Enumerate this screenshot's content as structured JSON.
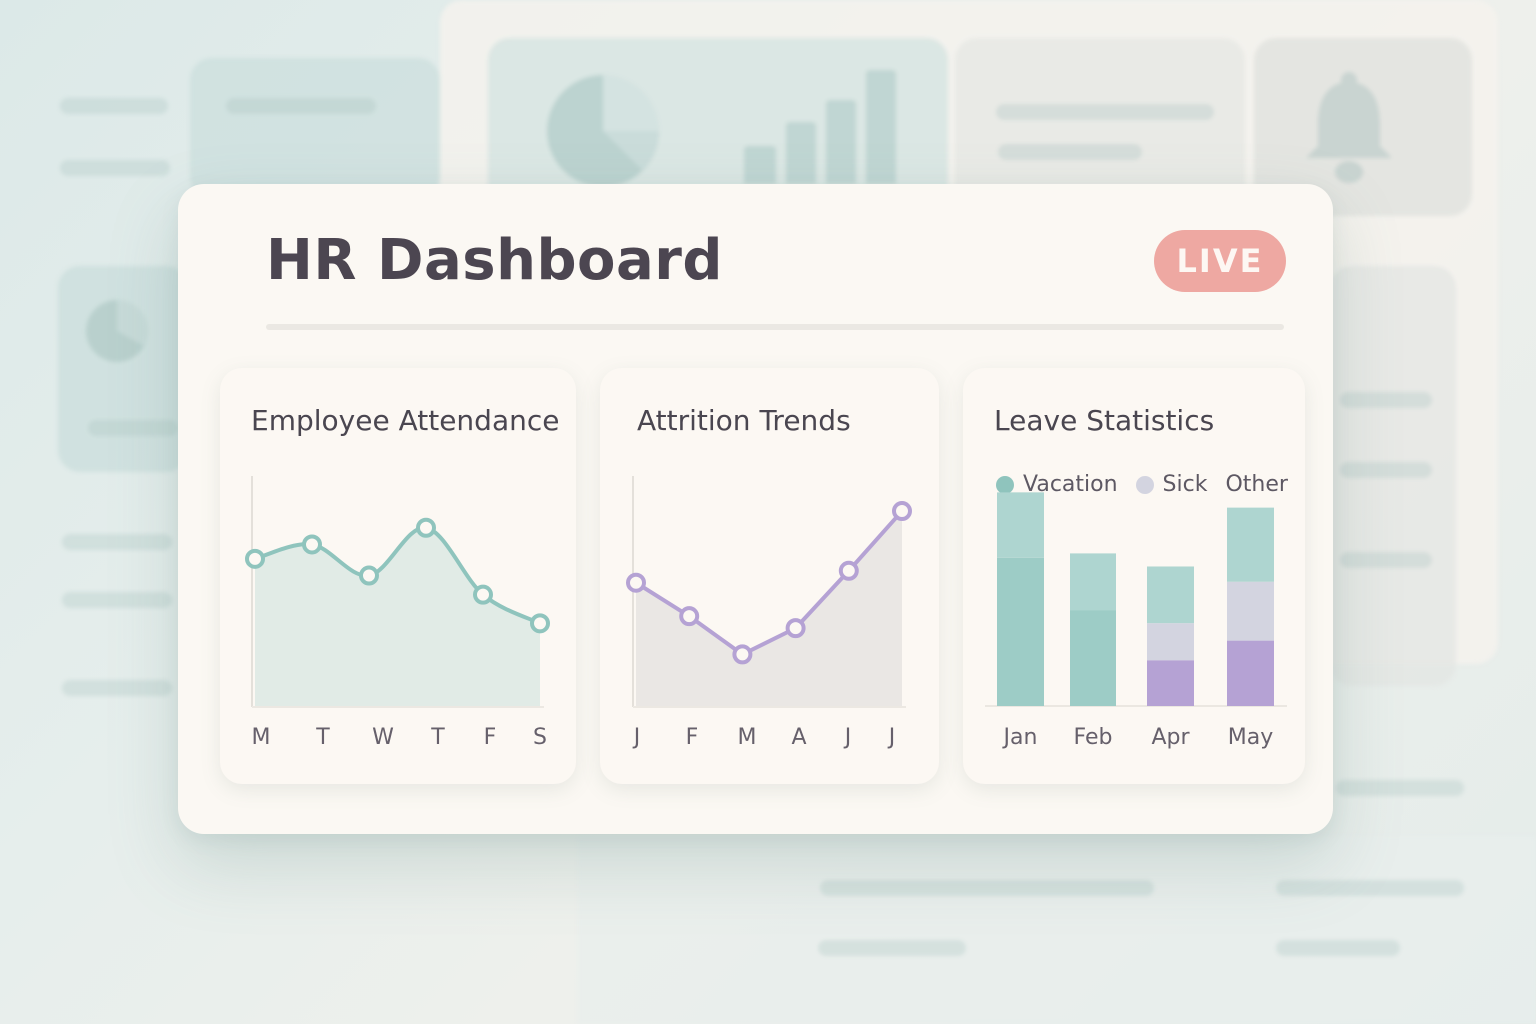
{
  "dashboard": {
    "title": "HR Dashboard",
    "live_badge": "LIVE"
  },
  "colors": {
    "teal": "#8fc4bd",
    "lavender": "#b5a2d4",
    "badge": "#eea8a2",
    "background_tint": "#dce9e8"
  },
  "panels": {
    "attendance": {
      "title": "Employee Attendance"
    },
    "attrition": {
      "title": "Attrition Trends"
    },
    "leave": {
      "title": "Leave Statistics",
      "legend": [
        "Vacation",
        "Sick",
        "Other"
      ]
    }
  },
  "background": {
    "icons": [
      "pie-chart-icon",
      "bar-chart-icon",
      "bell-icon"
    ]
  },
  "chart_data": [
    {
      "type": "area",
      "title": "Employee Attendance",
      "categories": [
        "M",
        "T",
        "W",
        "T",
        "F",
        "S"
      ],
      "values": [
        62,
        68,
        55,
        75,
        47,
        35
      ],
      "ylim": [
        0,
        100
      ],
      "grid": false
    },
    {
      "type": "line",
      "title": "Attrition Trends",
      "categories": [
        "J",
        "F",
        "M",
        "A",
        "J",
        "J"
      ],
      "values": [
        52,
        38,
        22,
        33,
        57,
        82
      ],
      "ylim": [
        0,
        100
      ],
      "grid": false
    },
    {
      "type": "bar",
      "title": "Leave Statistics",
      "stacked": true,
      "categories": [
        "Jan",
        "Feb",
        "Apr",
        "May"
      ],
      "series": [
        {
          "name": "Other",
          "values": [
            68,
            44,
            21,
            30
          ]
        },
        {
          "name": "Sick",
          "values": [
            0,
            0,
            17,
            27
          ]
        },
        {
          "name": "Vacation",
          "values": [
            30,
            26,
            26,
            34
          ]
        }
      ],
      "ylim": [
        0,
        100
      ],
      "legend_position": "top",
      "grid": false
    }
  ]
}
